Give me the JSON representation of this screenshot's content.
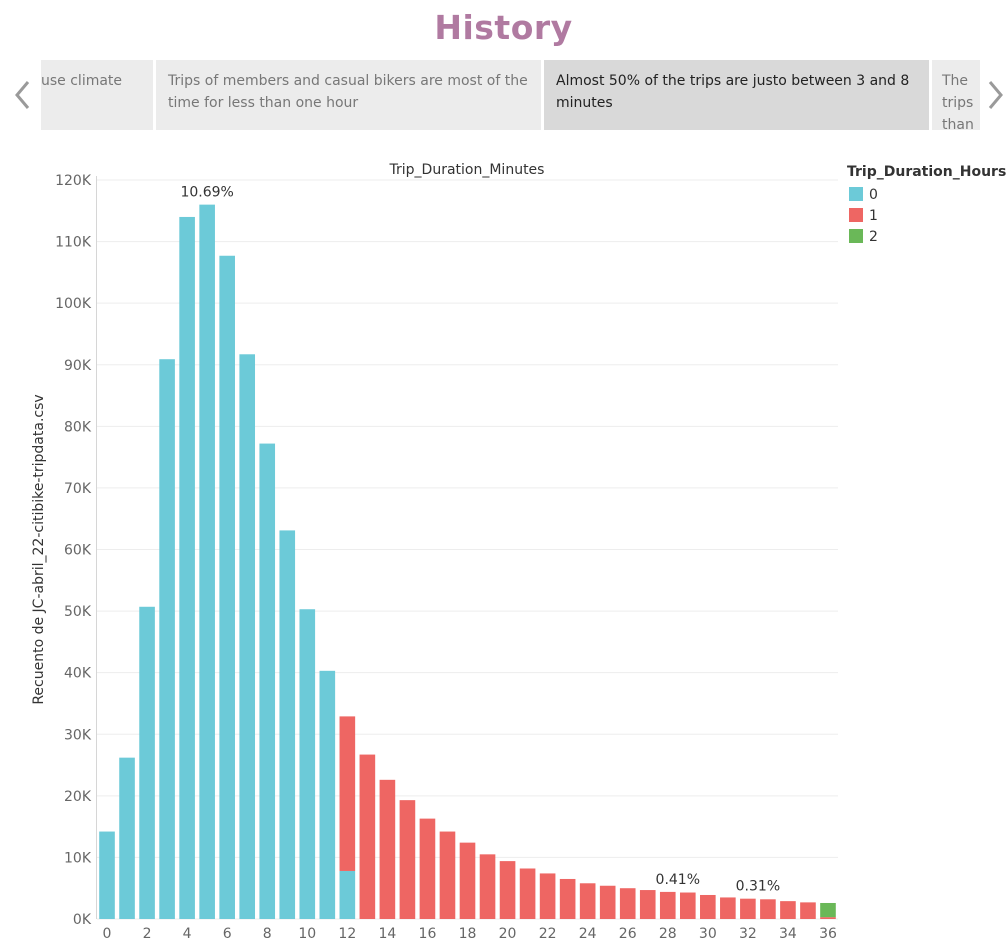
{
  "page": {
    "title": "History",
    "title_color": "#b07aa1"
  },
  "story": {
    "prev_icon": "chevron-left-icon",
    "next_icon": "chevron-right-icon",
    "points": [
      {
        "text": "use climate",
        "active": false
      },
      {
        "text": "Trips of members and casual bikers are most of the time for less than one hour",
        "active": false
      },
      {
        "text": "Almost 50% of the trips are justo between 3 and 8 minutes",
        "active": true
      },
      {
        "text": "The trips than o",
        "active": false
      }
    ]
  },
  "legend": {
    "title": "Trip_Duration_Hours",
    "items": [
      {
        "label": "0",
        "color": "#6ccad8"
      },
      {
        "label": "1",
        "color": "#ee6663"
      },
      {
        "label": "2",
        "color": "#6ab858"
      }
    ]
  },
  "chart_data": {
    "type": "bar",
    "stacked": true,
    "title": "Trip_Duration_Minutes",
    "xlabel": "",
    "ylabel": "Recuento de JC-abril_22-citibike-tripdata.csv",
    "ylim": [
      0,
      120000
    ],
    "yticks": [
      0,
      10000,
      20000,
      30000,
      40000,
      50000,
      60000,
      70000,
      80000,
      90000,
      100000,
      110000,
      120000
    ],
    "ytick_labels": [
      "0K",
      "10K",
      "20K",
      "30K",
      "40K",
      "50K",
      "60K",
      "70K",
      "80K",
      "90K",
      "100K",
      "110K",
      "120K"
    ],
    "categories": [
      0,
      1,
      2,
      3,
      4,
      5,
      6,
      7,
      8,
      9,
      10,
      11,
      12,
      13,
      14,
      15,
      16,
      17,
      18,
      19,
      20,
      21,
      22,
      23,
      24,
      25,
      26,
      27,
      28,
      29,
      30,
      31,
      32,
      33,
      34,
      35,
      36
    ],
    "xtick_labels": [
      "0",
      "2",
      "4",
      "6",
      "8",
      "10",
      "12",
      "14",
      "16",
      "18",
      "20",
      "22",
      "24",
      "26",
      "28",
      "30",
      "32",
      "34",
      "36"
    ],
    "grid": true,
    "series": [
      {
        "name": "0",
        "color": "#6ccad8",
        "values": [
          14200,
          26200,
          50700,
          90900,
          114000,
          116000,
          107700,
          91700,
          77200,
          63100,
          50300,
          40300,
          7800,
          0,
          0,
          0,
          0,
          0,
          0,
          0,
          0,
          0,
          0,
          0,
          0,
          0,
          0,
          0,
          0,
          0,
          0,
          0,
          0,
          0,
          0,
          0,
          0
        ]
      },
      {
        "name": "1",
        "color": "#ee6663",
        "values": [
          0,
          0,
          0,
          0,
          0,
          0,
          0,
          0,
          0,
          0,
          0,
          0,
          25100,
          26700,
          22600,
          19300,
          16300,
          14200,
          12400,
          10500,
          9400,
          8200,
          7400,
          6500,
          5800,
          5400,
          5000,
          4700,
          4400,
          4300,
          3900,
          3500,
          3300,
          3200,
          2900,
          2700,
          300
        ]
      },
      {
        "name": "2",
        "color": "#6ab858",
        "values": [
          0,
          0,
          0,
          0,
          0,
          0,
          0,
          0,
          0,
          0,
          0,
          0,
          0,
          0,
          0,
          0,
          0,
          0,
          0,
          0,
          0,
          0,
          0,
          0,
          0,
          0,
          0,
          0,
          0,
          0,
          0,
          0,
          0,
          0,
          0,
          0,
          2300
        ]
      }
    ],
    "annotations": [
      {
        "category": 5,
        "text": "10.69%"
      },
      {
        "category": 28.5,
        "text": "0.41%"
      },
      {
        "category": 32.5,
        "text": "0.31%"
      }
    ]
  }
}
